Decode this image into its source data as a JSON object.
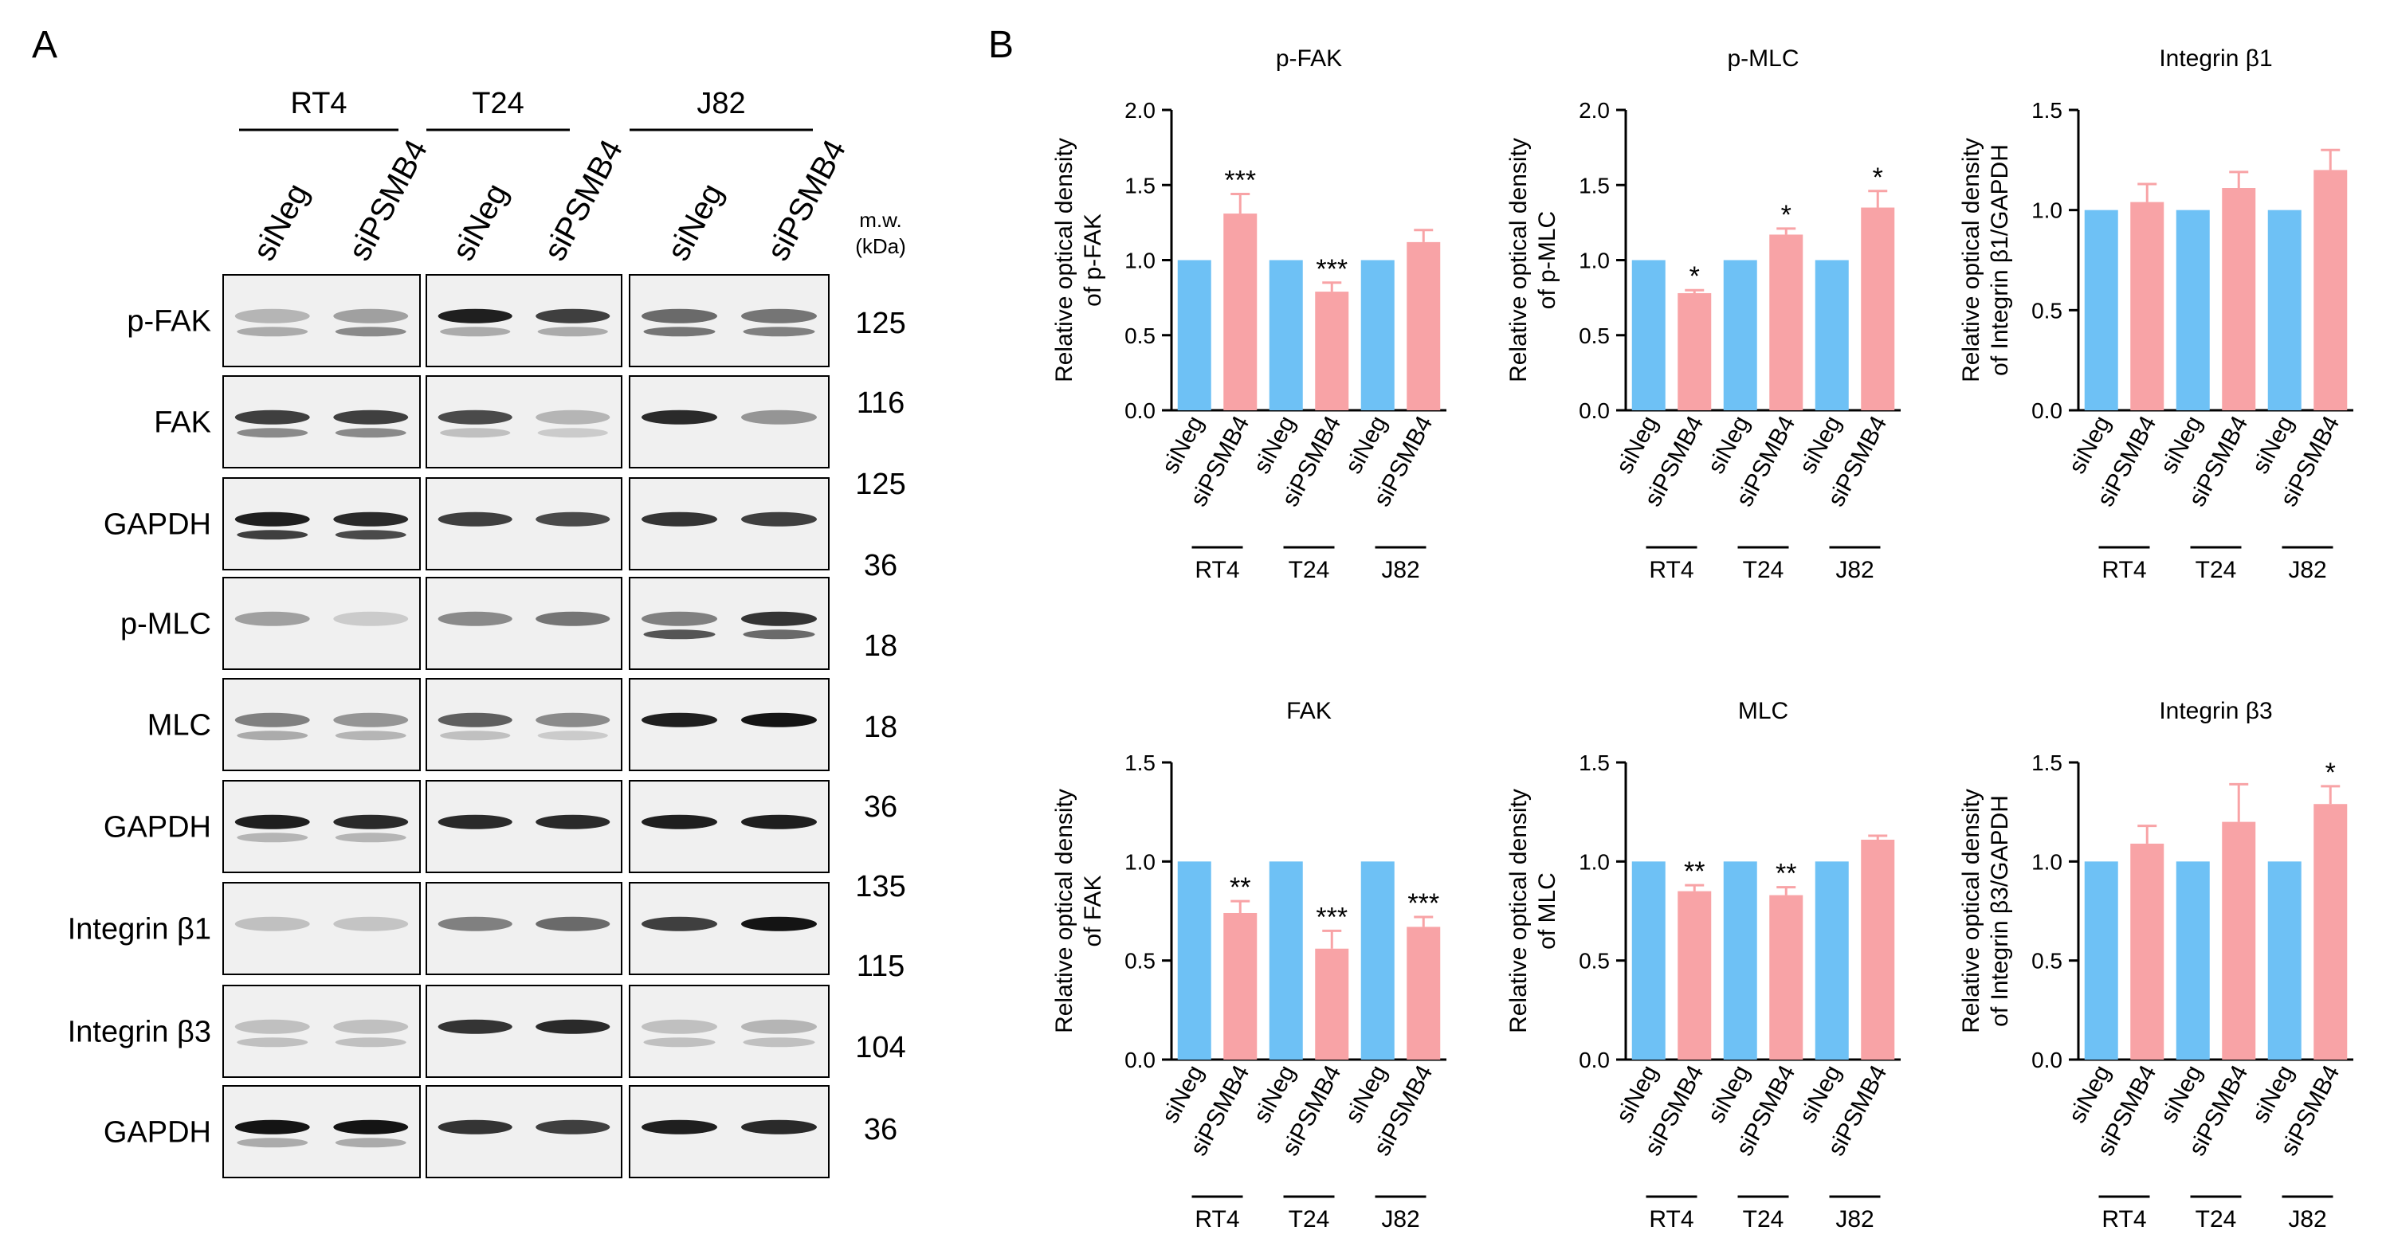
{
  "panel_a": {
    "label": "A",
    "cell_lines": [
      "RT4",
      "T24",
      "J82"
    ],
    "lanes": [
      "siNeg",
      "siPSMB4",
      "siNeg",
      "siPSMB4",
      "siNeg",
      "siPSMB4"
    ],
    "mw_header": [
      "m.w.",
      "(kDa)"
    ],
    "rows": [
      {
        "label": "p-FAK"
      },
      {
        "label": "FAK"
      },
      {
        "label": "GAPDH"
      },
      {
        "label": "p-MLC"
      },
      {
        "label": "MLC"
      },
      {
        "label": "GAPDH"
      },
      {
        "label": "Integrin β1"
      },
      {
        "label": "Integrin β3"
      },
      {
        "label": "GAPDH"
      }
    ],
    "mw_values": [
      "125",
      "116",
      "125",
      "36",
      "18",
      "18",
      "36",
      "135",
      "115",
      "104",
      "36"
    ]
  },
  "panel_b": {
    "label": "B",
    "colors": {
      "siNeg": "#6EC1F5",
      "siPSMB4": "#F8A3A6"
    }
  },
  "chart_data": [
    {
      "type": "bar",
      "title": "p-FAK",
      "ylabel": [
        "Relative optical density",
        "of p-FAK"
      ],
      "ylim": [
        0,
        2.0
      ],
      "yticks": [
        "0.0",
        "0.5",
        "1.0",
        "1.5",
        "2.0"
      ],
      "categories": [
        "siNeg",
        "siPSMB4",
        "siNeg",
        "siPSMB4",
        "siNeg",
        "siPSMB4"
      ],
      "groups": [
        "RT4",
        "T24",
        "J82"
      ],
      "values": [
        1.0,
        1.31,
        1.0,
        0.79,
        1.0,
        1.12
      ],
      "errors": [
        0,
        0.13,
        0,
        0.06,
        0,
        0.08
      ],
      "significance": [
        "",
        "***",
        "",
        "***",
        "",
        ""
      ]
    },
    {
      "type": "bar",
      "title": "p-MLC",
      "ylabel": [
        "Relative optical density",
        "of p-MLC"
      ],
      "ylim": [
        0,
        2.0
      ],
      "yticks": [
        "0.0",
        "0.5",
        "1.0",
        "1.5",
        "2.0"
      ],
      "categories": [
        "siNeg",
        "siPSMB4",
        "siNeg",
        "siPSMB4",
        "siNeg",
        "siPSMB4"
      ],
      "groups": [
        "RT4",
        "T24",
        "J82"
      ],
      "values": [
        1.0,
        0.78,
        1.0,
        1.17,
        1.0,
        1.35
      ],
      "errors": [
        0,
        0.02,
        0,
        0.04,
        0,
        0.11
      ],
      "significance": [
        "",
        "*",
        "",
        "*",
        "",
        "*"
      ]
    },
    {
      "type": "bar",
      "title": "Integrin β1",
      "ylabel": [
        "Relative optical density",
        "of Integrin β1/GAPDH"
      ],
      "ylim": [
        0,
        1.5
      ],
      "yticks": [
        "0.0",
        "0.5",
        "1.0",
        "1.5"
      ],
      "categories": [
        "siNeg",
        "siPSMB4",
        "siNeg",
        "siPSMB4",
        "siNeg",
        "siPSMB4"
      ],
      "groups": [
        "RT4",
        "T24",
        "J82"
      ],
      "values": [
        1.0,
        1.04,
        1.0,
        1.11,
        1.0,
        1.2
      ],
      "errors": [
        0,
        0.09,
        0,
        0.08,
        0,
        0.1
      ],
      "significance": [
        "",
        "",
        "",
        "",
        "",
        ""
      ]
    },
    {
      "type": "bar",
      "title": "FAK",
      "ylabel": [
        "Relative optical density",
        "of FAK"
      ],
      "ylim": [
        0,
        1.5
      ],
      "yticks": [
        "0.0",
        "0.5",
        "1.0",
        "1.5"
      ],
      "categories": [
        "siNeg",
        "siPSMB4",
        "siNeg",
        "siPSMB4",
        "siNeg",
        "siPSMB4"
      ],
      "groups": [
        "RT4",
        "T24",
        "J82"
      ],
      "values": [
        1.0,
        0.74,
        1.0,
        0.56,
        1.0,
        0.67
      ],
      "errors": [
        0,
        0.06,
        0,
        0.09,
        0,
        0.05
      ],
      "significance": [
        "",
        "**",
        "",
        "***",
        "",
        "***"
      ]
    },
    {
      "type": "bar",
      "title": "MLC",
      "ylabel": [
        "Relative optical density",
        "of MLC"
      ],
      "ylim": [
        0,
        1.5
      ],
      "yticks": [
        "0.0",
        "0.5",
        "1.0",
        "1.5"
      ],
      "categories": [
        "siNeg",
        "siPSMB4",
        "siNeg",
        "siPSMB4",
        "siNeg",
        "siPSMB4"
      ],
      "groups": [
        "RT4",
        "T24",
        "J82"
      ],
      "values": [
        1.0,
        0.85,
        1.0,
        0.83,
        1.0,
        1.11
      ],
      "errors": [
        0,
        0.03,
        0,
        0.04,
        0,
        0.02
      ],
      "significance": [
        "",
        "**",
        "",
        "**",
        "",
        ""
      ]
    },
    {
      "type": "bar",
      "title": "Integrin β3",
      "ylabel": [
        "Relative optical density",
        "of Integrin β3/GAPDH"
      ],
      "ylim": [
        0,
        1.5
      ],
      "yticks": [
        "0.0",
        "0.5",
        "1.0",
        "1.5"
      ],
      "categories": [
        "siNeg",
        "siPSMB4",
        "siNeg",
        "siPSMB4",
        "siNeg",
        "siPSMB4"
      ],
      "groups": [
        "RT4",
        "T24",
        "J82"
      ],
      "values": [
        1.0,
        1.09,
        1.0,
        1.2,
        1.0,
        1.29
      ],
      "errors": [
        0,
        0.09,
        0,
        0.19,
        0,
        0.09
      ],
      "significance": [
        "",
        "",
        "",
        "",
        "",
        "*"
      ]
    }
  ]
}
